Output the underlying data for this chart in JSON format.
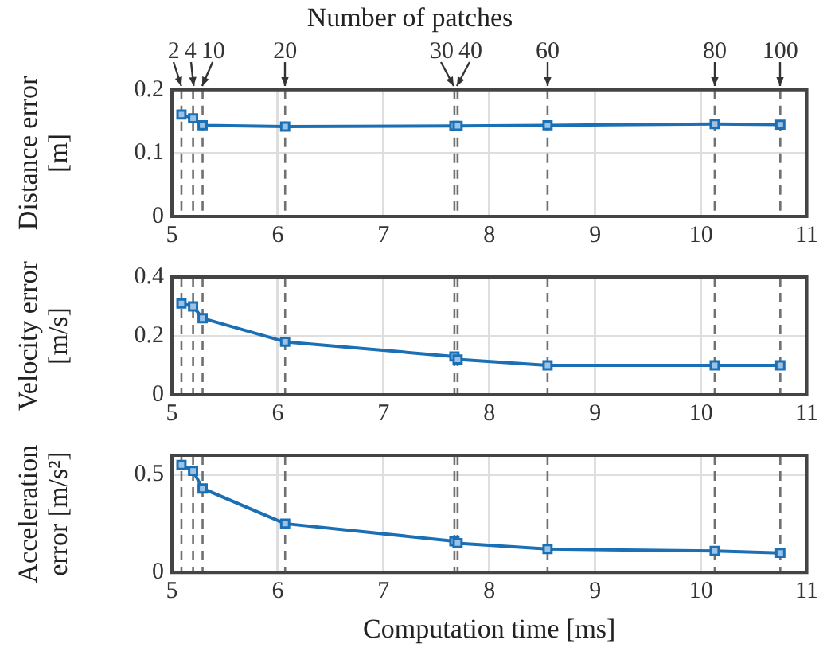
{
  "chart_data": [
    {
      "type": "line",
      "title": "Number of patches",
      "ylabel": "Distance error [m]",
      "x": [
        5.09,
        5.2,
        5.29,
        6.07,
        7.67,
        7.7,
        8.55,
        10.13,
        10.75
      ],
      "series": [
        {
          "color": "#1a6fb5",
          "values": [
            0.161,
            0.155,
            0.144,
            0.142,
            0.143,
            0.143,
            0.144,
            0.146,
            0.145
          ]
        }
      ],
      "xlim": [
        5,
        11
      ],
      "xticks": [
        5,
        6,
        7,
        8,
        9,
        10,
        11
      ],
      "ylim": [
        0,
        0.2
      ],
      "yticks": [
        0,
        0.1,
        0.2
      ],
      "annotations": [
        {
          "text": "2",
          "x": 5.09,
          "y": 0.2
        },
        {
          "text": "4",
          "x": 5.2,
          "y": 0.2
        },
        {
          "text": "10",
          "x": 5.29,
          "y": 0.2
        },
        {
          "text": "20",
          "x": 6.07,
          "y": 0.2
        },
        {
          "text": "30",
          "x": 7.67,
          "y": 0.2
        },
        {
          "text": "40",
          "x": 7.7,
          "y": 0.2
        },
        {
          "text": "60",
          "x": 8.55,
          "y": 0.2
        },
        {
          "text": "80",
          "x": 10.13,
          "y": 0.2
        },
        {
          "text": "100",
          "x": 10.75,
          "y": 0.2
        }
      ],
      "ref_lines": [
        {
          "axis": "x",
          "value": 5.09,
          "color": "#707070",
          "line_style": "dashed"
        },
        {
          "axis": "x",
          "value": 5.2,
          "color": "#707070",
          "line_style": "dashed"
        },
        {
          "axis": "x",
          "value": 5.29,
          "color": "#707070",
          "line_style": "dashed"
        },
        {
          "axis": "x",
          "value": 6.07,
          "color": "#707070",
          "line_style": "dashed"
        },
        {
          "axis": "x",
          "value": 7.67,
          "color": "#707070",
          "line_style": "dashed"
        },
        {
          "axis": "x",
          "value": 7.7,
          "color": "#707070",
          "line_style": "dashed"
        },
        {
          "axis": "x",
          "value": 8.55,
          "color": "#707070",
          "line_style": "dashed"
        },
        {
          "axis": "x",
          "value": 10.13,
          "color": "#707070",
          "line_style": "dashed"
        },
        {
          "axis": "x",
          "value": 10.75,
          "color": "#707070",
          "line_style": "dashed"
        }
      ],
      "grid": true,
      "marker": "square",
      "line_style": "solid"
    },
    {
      "type": "line",
      "ylabel": "Velocity error [m/s]",
      "x": [
        5.09,
        5.2,
        5.29,
        6.07,
        7.67,
        7.7,
        8.55,
        10.13,
        10.75
      ],
      "series": [
        {
          "color": "#1a6fb5",
          "values": [
            0.31,
            0.3,
            0.26,
            0.18,
            0.13,
            0.12,
            0.1,
            0.1,
            0.1
          ]
        }
      ],
      "xlim": [
        5,
        11
      ],
      "xticks": [
        5,
        6,
        7,
        8,
        9,
        10,
        11
      ],
      "ylim": [
        0,
        0.4
      ],
      "yticks": [
        0,
        0.2,
        0.4
      ],
      "ref_lines": [
        {
          "axis": "x",
          "value": 5.09,
          "color": "#707070",
          "line_style": "dashed"
        },
        {
          "axis": "x",
          "value": 5.2,
          "color": "#707070",
          "line_style": "dashed"
        },
        {
          "axis": "x",
          "value": 5.29,
          "color": "#707070",
          "line_style": "dashed"
        },
        {
          "axis": "x",
          "value": 6.07,
          "color": "#707070",
          "line_style": "dashed"
        },
        {
          "axis": "x",
          "value": 7.67,
          "color": "#707070",
          "line_style": "dashed"
        },
        {
          "axis": "x",
          "value": 7.7,
          "color": "#707070",
          "line_style": "dashed"
        },
        {
          "axis": "x",
          "value": 8.55,
          "color": "#707070",
          "line_style": "dashed"
        },
        {
          "axis": "x",
          "value": 10.13,
          "color": "#707070",
          "line_style": "dashed"
        },
        {
          "axis": "x",
          "value": 10.75,
          "color": "#707070",
          "line_style": "dashed"
        }
      ],
      "grid": true,
      "marker": "square",
      "line_style": "solid"
    },
    {
      "type": "line",
      "xlabel": "Computation time [ms]",
      "ylabel": "Acceleration error [m/s²]",
      "x": [
        5.09,
        5.2,
        5.29,
        6.07,
        7.67,
        7.7,
        8.55,
        10.13,
        10.75
      ],
      "series": [
        {
          "color": "#1a6fb5",
          "values": [
            0.55,
            0.52,
            0.43,
            0.25,
            0.16,
            0.15,
            0.12,
            0.11,
            0.1
          ]
        }
      ],
      "xlim": [
        5,
        11
      ],
      "xticks": [
        5,
        6,
        7,
        8,
        9,
        10,
        11
      ],
      "ylim": [
        0,
        0.6
      ],
      "yticks": [
        0,
        0.5
      ],
      "ref_lines": [
        {
          "axis": "x",
          "value": 5.09,
          "color": "#707070",
          "line_style": "dashed"
        },
        {
          "axis": "x",
          "value": 5.2,
          "color": "#707070",
          "line_style": "dashed"
        },
        {
          "axis": "x",
          "value": 5.29,
          "color": "#707070",
          "line_style": "dashed"
        },
        {
          "axis": "x",
          "value": 6.07,
          "color": "#707070",
          "line_style": "dashed"
        },
        {
          "axis": "x",
          "value": 7.67,
          "color": "#707070",
          "line_style": "dashed"
        },
        {
          "axis": "x",
          "value": 7.7,
          "color": "#707070",
          "line_style": "dashed"
        },
        {
          "axis": "x",
          "value": 8.55,
          "color": "#707070",
          "line_style": "dashed"
        },
        {
          "axis": "x",
          "value": 10.13,
          "color": "#707070",
          "line_style": "dashed"
        },
        {
          "axis": "x",
          "value": 10.75,
          "color": "#707070",
          "line_style": "dashed"
        }
      ],
      "grid": true,
      "marker": "square",
      "line_style": "solid"
    }
  ]
}
